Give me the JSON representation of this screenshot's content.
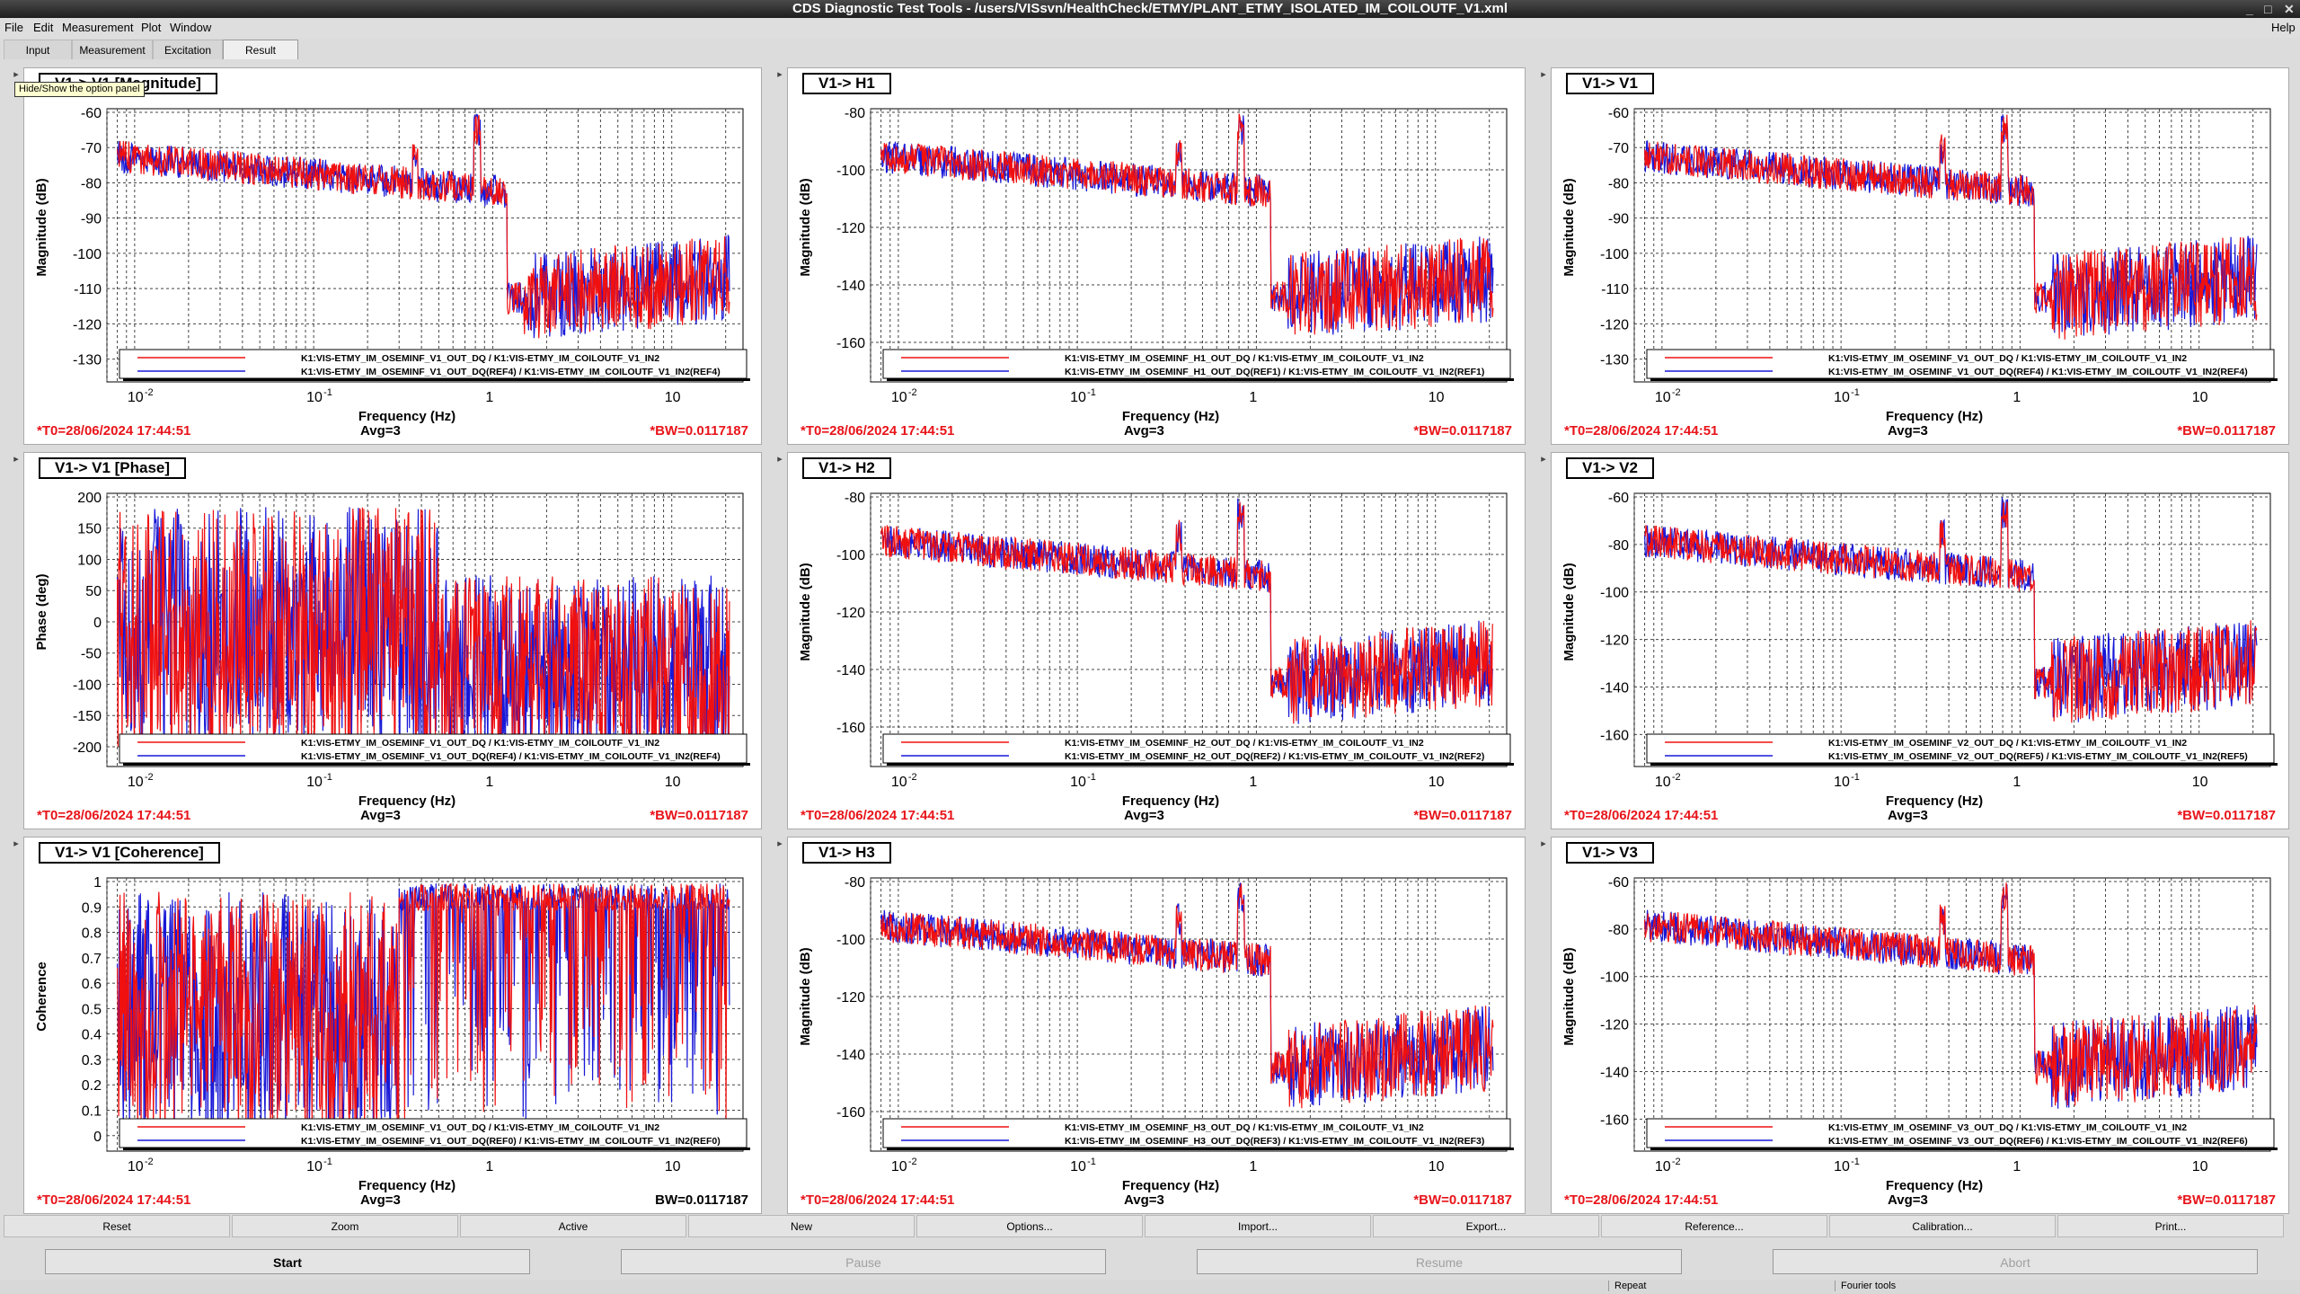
{
  "window": {
    "title": "CDS Diagnostic Test Tools - /users/VISsvn/HealthCheck/ETMY/PLANT_ETMY_ISOLATED_IM_COILOUTF_V1.xml",
    "help": "Help"
  },
  "menu": [
    "File",
    "Edit",
    "Measurement",
    "Plot",
    "Window"
  ],
  "tabs": [
    "Input",
    "Measurement",
    "Excitation",
    "Result"
  ],
  "active_tab": "Result",
  "tooltip": "Hide/Show the option panel",
  "colors": {
    "red": "#f01010",
    "blue": "#1818d8",
    "status_red": "#e8141a"
  },
  "panels": [
    {
      "title": "V1-> V1 [Magnitude]",
      "ylabel": "Magnitude (dB)",
      "yticks": [
        "-60",
        "-70",
        "-80",
        "-90",
        "-100",
        "-110",
        "-120",
        "-130"
      ],
      "legend": [
        "K1:VIS-ETMY_IM_OSEMINF_V1_OUT_DQ / K1:VIS-ETMY_IM_COILOUTF_V1_IN2",
        "K1:VIS-ETMY_IM_OSEMINF_V1_OUT_DQ(REF4) / K1:VIS-ETMY_IM_COILOUTF_V1_IN2(REF4)"
      ],
      "t0": "*T0=28/06/2024 17:44:51",
      "avg": "Avg=3",
      "bw": "*BW=0.0117187"
    },
    {
      "title": "V1-> H1",
      "ylabel": "Magnitude (dB)",
      "yticks": [
        "-80",
        "-100",
        "-120",
        "-140",
        "-160"
      ],
      "legend": [
        "K1:VIS-ETMY_IM_OSEMINF_H1_OUT_DQ / K1:VIS-ETMY_IM_COILOUTF_V1_IN2",
        "K1:VIS-ETMY_IM_OSEMINF_H1_OUT_DQ(REF1) / K1:VIS-ETMY_IM_COILOUTF_V1_IN2(REF1)"
      ],
      "t0": "*T0=28/06/2024 17:44:51",
      "avg": "Avg=3",
      "bw": "*BW=0.0117187"
    },
    {
      "title": "V1-> V1",
      "ylabel": "Magnitude (dB)",
      "yticks": [
        "-60",
        "-70",
        "-80",
        "-90",
        "-100",
        "-110",
        "-120",
        "-130"
      ],
      "legend": [
        "K1:VIS-ETMY_IM_OSEMINF_V1_OUT_DQ / K1:VIS-ETMY_IM_COILOUTF_V1_IN2",
        "K1:VIS-ETMY_IM_OSEMINF_V1_OUT_DQ(REF4) / K1:VIS-ETMY_IM_COILOUTF_V1_IN2(REF4)"
      ],
      "t0": "*T0=28/06/2024 17:44:51",
      "avg": "Avg=3",
      "bw": "*BW=0.0117187"
    },
    {
      "title": "V1-> V1 [Phase]",
      "ylabel": "Phase (deg)",
      "yticks": [
        "200",
        "150",
        "100",
        "50",
        "0",
        "-50",
        "-100",
        "-150",
        "-200"
      ],
      "legend": [
        "K1:VIS-ETMY_IM_OSEMINF_V1_OUT_DQ / K1:VIS-ETMY_IM_COILOUTF_V1_IN2",
        "K1:VIS-ETMY_IM_OSEMINF_V1_OUT_DQ(REF4) / K1:VIS-ETMY_IM_COILOUTF_V1_IN2(REF4)"
      ],
      "t0": "*T0=28/06/2024 17:44:51",
      "avg": "Avg=3",
      "bw": "*BW=0.0117187"
    },
    {
      "title": "V1-> H2",
      "ylabel": "Magnitude (dB)",
      "yticks": [
        "-80",
        "-100",
        "-120",
        "-140",
        "-160"
      ],
      "legend": [
        "K1:VIS-ETMY_IM_OSEMINF_H2_OUT_DQ / K1:VIS-ETMY_IM_COILOUTF_V1_IN2",
        "K1:VIS-ETMY_IM_OSEMINF_H2_OUT_DQ(REF2) / K1:VIS-ETMY_IM_COILOUTF_V1_IN2(REF2)"
      ],
      "t0": "*T0=28/06/2024 17:44:51",
      "avg": "Avg=3",
      "bw": "*BW=0.0117187"
    },
    {
      "title": "V1-> V2",
      "ylabel": "Magnitude (dB)",
      "yticks": [
        "-60",
        "-80",
        "-100",
        "-120",
        "-140",
        "-160"
      ],
      "legend": [
        "K1:VIS-ETMY_IM_OSEMINF_V2_OUT_DQ / K1:VIS-ETMY_IM_COILOUTF_V1_IN2",
        "K1:VIS-ETMY_IM_OSEMINF_V2_OUT_DQ(REF5) / K1:VIS-ETMY_IM_COILOUTF_V1_IN2(REF5)"
      ],
      "t0": "*T0=28/06/2024 17:44:51",
      "avg": "Avg=3",
      "bw": "*BW=0.0117187"
    },
    {
      "title": "V1-> V1 [Coherence]",
      "ylabel": "Coherence",
      "yticks": [
        "1",
        "0.9",
        "0.8",
        "0.7",
        "0.6",
        "0.5",
        "0.4",
        "0.3",
        "0.2",
        "0.1",
        "0"
      ],
      "legend": [
        "K1:VIS-ETMY_IM_OSEMINF_V1_OUT_DQ / K1:VIS-ETMY_IM_COILOUTF_V1_IN2",
        "K1:VIS-ETMY_IM_OSEMINF_V1_OUT_DQ(REF0) / K1:VIS-ETMY_IM_COILOUTF_V1_IN2(REF0)"
      ],
      "t0": "*T0=28/06/2024 17:44:51",
      "avg": "Avg=3",
      "bw": "BW=0.0117187",
      "bw_black": true
    },
    {
      "title": "V1-> H3",
      "ylabel": "Magnitude (dB)",
      "yticks": [
        "-80",
        "-100",
        "-120",
        "-140",
        "-160"
      ],
      "legend": [
        "K1:VIS-ETMY_IM_OSEMINF_H3_OUT_DQ / K1:VIS-ETMY_IM_COILOUTF_V1_IN2",
        "K1:VIS-ETMY_IM_OSEMINF_H3_OUT_DQ(REF3) / K1:VIS-ETMY_IM_COILOUTF_V1_IN2(REF3)"
      ],
      "t0": "*T0=28/06/2024 17:44:51",
      "avg": "Avg=3",
      "bw": "*BW=0.0117187"
    },
    {
      "title": "V1-> V3",
      "ylabel": "Magnitude (dB)",
      "yticks": [
        "-60",
        "-80",
        "-100",
        "-120",
        "-140",
        "-160"
      ],
      "legend": [
        "K1:VIS-ETMY_IM_OSEMINF_V3_OUT_DQ / K1:VIS-ETMY_IM_COILOUTF_V1_IN2",
        "K1:VIS-ETMY_IM_OSEMINF_V3_OUT_DQ(REF6) / K1:VIS-ETMY_IM_COILOUTF_V1_IN2(REF6)"
      ],
      "t0": "*T0=28/06/2024 17:44:51",
      "avg": "Avg=3",
      "bw": "*BW=0.0117187"
    }
  ],
  "xaxis": {
    "label": "Frequency (Hz)",
    "ticks": [
      "10",
      "10",
      "1",
      "10"
    ],
    "exponents": [
      "-2",
      "-1",
      "",
      ""
    ]
  },
  "buttons": [
    "Reset",
    "Zoom",
    "Active",
    "New",
    "Options...",
    "Import...",
    "Export...",
    "Reference...",
    "Calibration...",
    "Print..."
  ],
  "run_buttons": [
    {
      "label": "Start",
      "enabled": true
    },
    {
      "label": "Pause",
      "enabled": false
    },
    {
      "label": "Resume",
      "enabled": false
    },
    {
      "label": "Abort",
      "enabled": false
    }
  ],
  "status": [
    "Repeat",
    "Fourier tools"
  ]
}
